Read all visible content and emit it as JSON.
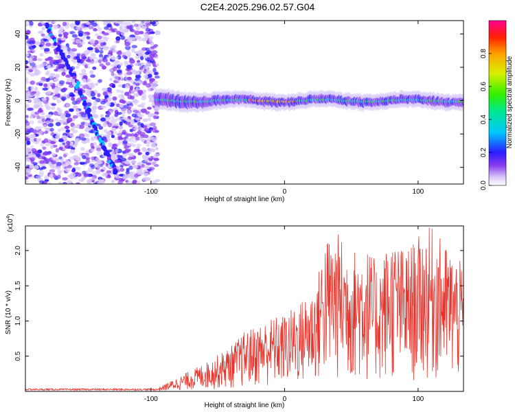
{
  "title": "C2E4.2025.296.02.57.G04",
  "chart_data": [
    {
      "type": "heatmap",
      "xlabel": "Height of straight line (km)",
      "ylabel": "Frequency (Hz)",
      "xlim": [
        -194,
        134
      ],
      "ylim": [
        -50,
        48
      ],
      "xticks": [
        -100,
        0,
        100
      ],
      "xtick_labels": [
        "-100",
        "0",
        "100"
      ],
      "yticks": [
        -40,
        -20,
        0,
        20,
        40
      ],
      "ytick_labels": [
        "-40",
        "-20",
        "0",
        "20",
        "40"
      ],
      "colorbar": {
        "label": "Normalized spectral amplitude",
        "range": [
          0,
          1
        ],
        "ticks": [
          0,
          0.2,
          0.4,
          0.6,
          0.8
        ],
        "tick_labels": [
          "0.0",
          "0.2",
          "0.4",
          "0.6",
          "0.8"
        ]
      },
      "features": {
        "noise_region_x": [
          -194,
          -95
        ],
        "diagonal_track": [
          [
            -178,
            45
          ],
          [
            -155,
            10
          ],
          [
            -140,
            -20
          ],
          [
            -126,
            -44
          ]
        ],
        "main_track_freq_hz": 0
      }
    },
    {
      "type": "line",
      "xlabel": "Height of straight line (km)",
      "ylabel": "SNR (10 * v/v)",
      "y_scale_label": "(x10",
      "y_scale_exp": "4",
      "y_scale_close": ")",
      "xlim": [
        -194,
        134
      ],
      "ylim": [
        0,
        2.35
      ],
      "xticks": [
        -100,
        0,
        100
      ],
      "xtick_labels": [
        "-100",
        "0",
        "100"
      ],
      "yticks": [
        0.5,
        1.0,
        1.5,
        2.0
      ],
      "ytick_labels": [
        "0.5",
        "1.0",
        "1.5",
        "2.0"
      ],
      "color": "#e8332b",
      "envelope": {
        "x": [
          -194,
          -95,
          -85,
          -70,
          -55,
          -40,
          -30,
          -20,
          -10,
          0,
          10,
          20,
          24,
          30,
          40,
          50,
          60,
          70,
          80,
          90,
          100,
          110,
          120,
          134
        ],
        "peak": [
          0.03,
          0.05,
          0.15,
          0.3,
          0.45,
          0.65,
          0.85,
          0.95,
          1.05,
          1.1,
          1.25,
          1.45,
          1.55,
          2.2,
          2.25,
          2.0,
          2.1,
          1.8,
          2.2,
          2.0,
          2.2,
          2.35,
          2.1,
          1.8
        ]
      }
    }
  ]
}
